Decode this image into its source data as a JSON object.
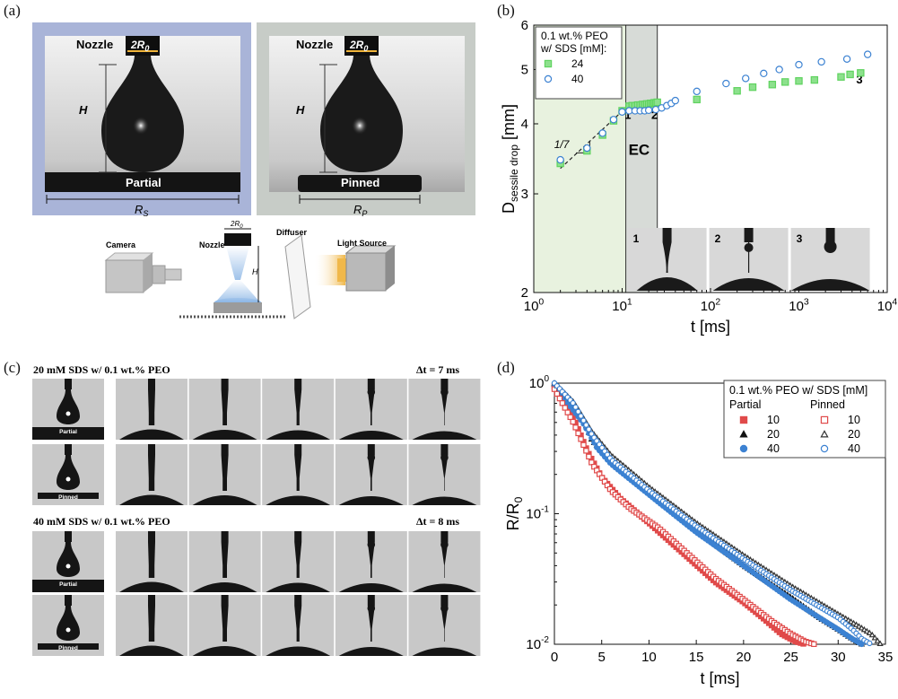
{
  "panels": {
    "a": "(a)",
    "b": "(b)",
    "c": "(c)",
    "d": "(d)"
  },
  "panel_a": {
    "left_image": {
      "nozzle": "Nozzle",
      "diameter": "2R",
      "diameter_sub": "0",
      "height": "H",
      "substrate": "Partial",
      "width": "R",
      "width_sub": "S"
    },
    "right_image": {
      "nozzle": "Nozzle",
      "diameter": "2R",
      "diameter_sub": "0",
      "height": "H",
      "substrate": "Pinned",
      "width": "R",
      "width_sub": "P"
    },
    "setup": {
      "camera": "Camera",
      "nozzle": "Nozzle",
      "diameter": "2R",
      "diameter_sub": "0",
      "height": "H",
      "diffuser": "Diffuser",
      "light": "Light Source"
    },
    "colors": {
      "left_frame": "#a9b4d8",
      "right_frame": "#c7ccc7"
    }
  },
  "panel_c": {
    "group1": {
      "title": "20 mM SDS w/ 0.1 wt.% PEO",
      "dt": "Δt = 7 ms",
      "row1_label": "Partial",
      "row2_label": "Pinned"
    },
    "group2": {
      "title": "40 mM SDS w/ 0.1 wt.% PEO",
      "dt": "Δt = 8 ms",
      "row1_label": "Partial",
      "row2_label": "Pinned"
    },
    "frames_per_row": 6
  },
  "chart_data": [
    {
      "id": "b",
      "type": "scatter",
      "xscale": "log",
      "yscale": "log",
      "xlim": [
        1,
        10000
      ],
      "ylim": [
        2,
        6
      ],
      "xticks": [
        1,
        10,
        100,
        1000,
        10000
      ],
      "xtick_labels": [
        [
          "10",
          "0"
        ],
        [
          "10",
          "1"
        ],
        [
          "10",
          "2"
        ],
        [
          "10",
          "3"
        ],
        [
          "10",
          "4"
        ]
      ],
      "yticks": [
        2,
        3,
        4,
        5,
        6
      ],
      "ytick_labels": [
        "2",
        "3",
        "4",
        "5",
        "6"
      ],
      "xlabel": "t [ms]",
      "ylabel_main": "D",
      "ylabel_sub": "sessile drop",
      "ylabel_unit": " [mm]",
      "legend_title_1": "0.1 wt.% PEO",
      "legend_title_2": "w/ SDS [mM]:",
      "legend_position": "top-left",
      "series": [
        {
          "name": "24",
          "marker": "square",
          "color": "#5fd35f",
          "fill": "#8de08d",
          "x": [
            2,
            4,
            6,
            8,
            10,
            12,
            13,
            14,
            15,
            16,
            17,
            18,
            19,
            20,
            21,
            22,
            23,
            24,
            25,
            70,
            200,
            300,
            500,
            700,
            1000,
            1500,
            3000,
            3800,
            5000
          ],
          "y": [
            3.4,
            3.58,
            3.82,
            4.05,
            4.22,
            4.3,
            4.31,
            4.31,
            4.32,
            4.32,
            4.33,
            4.33,
            4.34,
            4.34,
            4.35,
            4.35,
            4.36,
            4.36,
            4.37,
            4.42,
            4.58,
            4.65,
            4.7,
            4.75,
            4.77,
            4.79,
            4.85,
            4.9,
            4.93
          ]
        },
        {
          "name": "40",
          "marker": "circle",
          "color": "#3c82d2",
          "fill": "#ffffff",
          "x": [
            2,
            4,
            6,
            8,
            10,
            12,
            14,
            16,
            18,
            20,
            24,
            28,
            32,
            36,
            40,
            70,
            150,
            250,
            400,
            600,
            1000,
            1800,
            3500,
            6000
          ],
          "y": [
            3.45,
            3.62,
            3.85,
            4.07,
            4.2,
            4.22,
            4.22,
            4.22,
            4.22,
            4.23,
            4.24,
            4.27,
            4.31,
            4.35,
            4.4,
            4.57,
            4.72,
            4.82,
            4.92,
            5.0,
            5.1,
            5.16,
            5.22,
            5.32
          ]
        }
      ],
      "annotations": {
        "slope": "1/7",
        "ec": "EC",
        "points": [
          {
            "label": "1",
            "x": 12
          },
          {
            "label": "2",
            "x": 24
          },
          {
            "label": "3",
            "x": 5000
          }
        ],
        "insets": [
          "1",
          "2",
          "3"
        ]
      },
      "shaded_regions": [
        {
          "x": [
            1,
            11
          ],
          "color": "#e8f2df"
        },
        {
          "x": [
            11,
            25
          ],
          "color": "#d7dbd7"
        }
      ]
    },
    {
      "id": "d",
      "type": "scatter",
      "xscale": "linear",
      "yscale": "log",
      "xlim": [
        0,
        35
      ],
      "ylim": [
        0.01,
        1
      ],
      "xticks": [
        0,
        5,
        10,
        15,
        20,
        25,
        30,
        35
      ],
      "xtick_labels": [
        "0",
        "5",
        "10",
        "15",
        "20",
        "25",
        "30",
        "35"
      ],
      "yticks": [
        0.01,
        0.1,
        1
      ],
      "ytick_labels": [
        [
          "10",
          "-2"
        ],
        [
          "10",
          "-1"
        ],
        [
          "10",
          "0"
        ]
      ],
      "xlabel": "t [ms]",
      "ylabel": "R/R",
      "ylabel_sub": "0",
      "legend_title": "0.1 wt.% PEO w/ SDS [mM]",
      "legend_col1": "Partial",
      "legend_col2": "Pinned",
      "legend_position": "top-right",
      "series": [
        {
          "name": "10",
          "group": "Partial",
          "marker": "square",
          "filled": true,
          "color": "#e04a4a",
          "x": [
            0,
            2,
            3.5,
            5,
            7,
            10,
            14,
            17,
            20,
            22,
            24,
            25.5,
            26.5
          ],
          "y": [
            0.95,
            0.55,
            0.3,
            0.19,
            0.13,
            0.085,
            0.047,
            0.03,
            0.021,
            0.016,
            0.012,
            0.0105,
            0.01
          ]
        },
        {
          "name": "20",
          "group": "Partial",
          "marker": "triangle",
          "filled": true,
          "color": "#111111",
          "x": [
            0,
            3,
            4,
            6,
            10,
            15,
            20,
            25,
            28,
            30,
            31.5,
            32.5
          ],
          "y": [
            0.98,
            0.55,
            0.36,
            0.27,
            0.15,
            0.075,
            0.04,
            0.023,
            0.016,
            0.013,
            0.011,
            0.01
          ]
        },
        {
          "name": "40",
          "group": "Partial",
          "marker": "circle",
          "filled": true,
          "color": "#3c82d2",
          "x": [
            0,
            3,
            4.5,
            6,
            10,
            15,
            20,
            25,
            28,
            30,
            31.5,
            32.5
          ],
          "y": [
            0.95,
            0.5,
            0.32,
            0.24,
            0.14,
            0.072,
            0.04,
            0.022,
            0.016,
            0.013,
            0.011,
            0.01
          ]
        },
        {
          "name": "10",
          "group": "Pinned",
          "marker": "square",
          "filled": false,
          "color": "#e04a4a",
          "x": [
            0,
            2,
            4,
            6,
            8,
            11,
            14,
            17,
            20,
            23,
            25,
            26.5,
            27.5
          ],
          "y": [
            0.9,
            0.5,
            0.24,
            0.15,
            0.11,
            0.078,
            0.05,
            0.032,
            0.022,
            0.015,
            0.012,
            0.0105,
            0.01
          ]
        },
        {
          "name": "20",
          "group": "Pinned",
          "marker": "triangle",
          "filled": false,
          "color": "#333333",
          "x": [
            0,
            2,
            4,
            6,
            10,
            15,
            20,
            25,
            30,
            32,
            33.5,
            34.5
          ],
          "y": [
            1.0,
            0.72,
            0.42,
            0.28,
            0.16,
            0.085,
            0.048,
            0.028,
            0.017,
            0.014,
            0.012,
            0.01
          ]
        },
        {
          "name": "40",
          "group": "Pinned",
          "marker": "circle",
          "filled": false,
          "color": "#3c82d2",
          "x": [
            0,
            2,
            4,
            6,
            10,
            15,
            20,
            25,
            30,
            31.5,
            32.5,
            33.5
          ],
          "y": [
            1.0,
            0.7,
            0.4,
            0.26,
            0.15,
            0.08,
            0.045,
            0.026,
            0.016,
            0.013,
            0.011,
            0.01
          ]
        }
      ]
    }
  ]
}
